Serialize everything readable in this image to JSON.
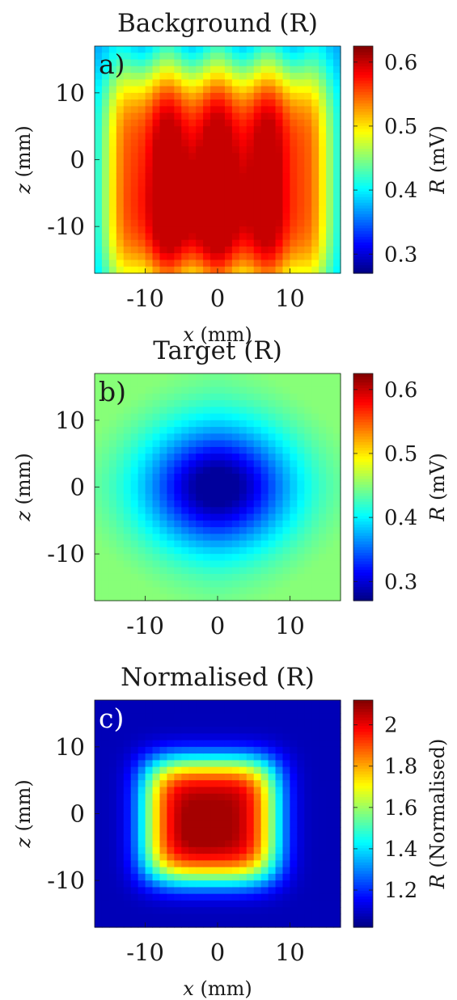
{
  "chart_data": [
    {
      "type": "heatmap",
      "title": "Background (R)",
      "panel_label": "a)",
      "xlabel": "x (mm)",
      "ylabel": "z (mm)",
      "xlim": [
        -17,
        17
      ],
      "ylim": [
        -17,
        17
      ],
      "x_ticks": [
        -10,
        0,
        10
      ],
      "y_ticks": [
        10,
        0,
        -10
      ],
      "colorbar": {
        "label": "R (mV)",
        "range": [
          0.27,
          0.625
        ],
        "ticks": [
          0.6,
          0.5,
          0.4,
          0.3
        ],
        "tick_labels": [
          "0.6",
          "0.5",
          "0.4",
          "0.3"
        ]
      },
      "field": {
        "min_value": 0.37,
        "max_value": 0.6,
        "description_values_only": true
      }
    },
    {
      "type": "heatmap",
      "title": "Target (R)",
      "panel_label": "b)",
      "xlabel": "",
      "ylabel": "z (mm)",
      "xlim": [
        -17,
        17
      ],
      "ylim": [
        -17,
        17
      ],
      "x_ticks": [
        -10,
        0,
        10
      ],
      "y_ticks": [
        10,
        0,
        -10
      ],
      "colorbar": {
        "label": "R (mV)",
        "range": [
          0.27,
          0.625
        ],
        "ticks": [
          0.6,
          0.5,
          0.4,
          0.3
        ],
        "tick_labels": [
          "0.6",
          "0.5",
          "0.4",
          "0.3"
        ]
      },
      "field": {
        "min_value": 0.28,
        "max_value": 0.45
      }
    },
    {
      "type": "heatmap",
      "title": "Normalised (R)",
      "panel_label": "c)",
      "xlabel": "x (mm)",
      "ylabel": "z (mm)",
      "xlim": [
        -17,
        17
      ],
      "ylim": [
        -17,
        17
      ],
      "x_ticks": [
        -10,
        0,
        10
      ],
      "y_ticks": [
        10,
        0,
        -10
      ],
      "colorbar": {
        "label": "R (Normalised)",
        "range": [
          1.02,
          2.12
        ],
        "ticks": [
          2.0,
          1.8,
          1.6,
          1.4,
          1.2
        ],
        "tick_labels": [
          "2",
          "1.8",
          "1.6",
          "1.4",
          "1.2"
        ]
      },
      "field": {
        "min_value": 1.08,
        "max_value": 2.08
      }
    }
  ],
  "tick_text": {
    "neg10": "-10",
    "zero": "0",
    "pos10": "10"
  },
  "colors": {
    "axis": "#1a1a1a",
    "panel_label_dark": "#1a1a1a",
    "panel_label_light": "#ffffff"
  }
}
